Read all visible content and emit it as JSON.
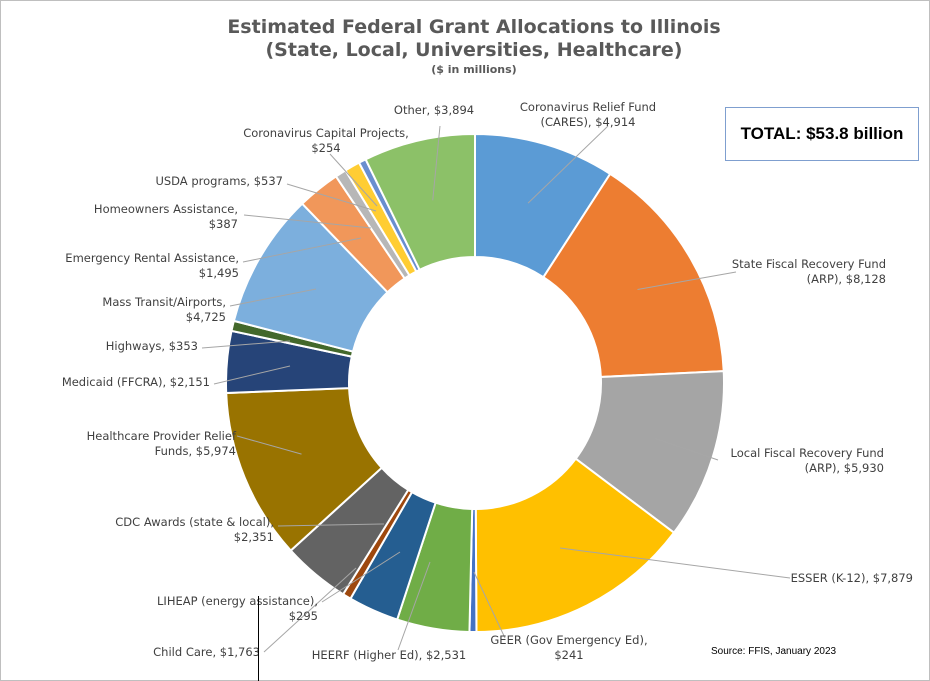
{
  "chart_data": {
    "type": "pie",
    "donut": true,
    "title": "Estimated Federal Grant Allocations to Illinois",
    "subtitle": "(State, Local, Universities, Healthcare)",
    "units_note": "($ in millions)",
    "total_label": "TOTAL: $53.8 billion",
    "source": "Source: FFIS, January 2023",
    "slices": [
      {
        "label_lines": [
          "Coronavirus Relief Fund",
          "(CARES),  $4,914"
        ],
        "value": 4914,
        "color": "#5b9bd5"
      },
      {
        "label_lines": [
          "State Fiscal Recovery Fund",
          "(ARP),  $8,128"
        ],
        "value": 8128,
        "color": "#ed7d31"
      },
      {
        "label_lines": [
          "Local Fiscal Recovery Fund",
          "(ARP),  $5,930"
        ],
        "value": 5930,
        "color": "#a5a5a5"
      },
      {
        "label_lines": [
          "ESSER (K-12),  $7,879"
        ],
        "value": 7879,
        "color": "#ffc000"
      },
      {
        "label_lines": [
          "GEER (Gov Emergency Ed),",
          "$241"
        ],
        "value": 241,
        "color": "#4472c4"
      },
      {
        "label_lines": [
          "HEERF (Higher Ed),  $2,531"
        ],
        "value": 2531,
        "color": "#70ad47"
      },
      {
        "label_lines": [
          "Child Care,  $1,763"
        ],
        "value": 1763,
        "color": "#255e91"
      },
      {
        "label_lines": [
          "LIHEAP (energy assistance),",
          "$295"
        ],
        "value": 295,
        "color": "#9e480e"
      },
      {
        "label_lines": [
          "CDC Awards (state & local),",
          "$2,351"
        ],
        "value": 2351,
        "color": "#636363"
      },
      {
        "label_lines": [
          "Healthcare Provider Relief",
          "Funds,  $5,974"
        ],
        "value": 5974,
        "color": "#997300"
      },
      {
        "label_lines": [
          "Medicaid (FFCRA),  $2,151"
        ],
        "value": 2151,
        "color": "#264478"
      },
      {
        "label_lines": [
          "Highways,  $353"
        ],
        "value": 353,
        "color": "#43682b"
      },
      {
        "label_lines": [
          "Mass Transit/Airports,",
          "$4,725"
        ],
        "value": 4725,
        "color": "#7cafdd"
      },
      {
        "label_lines": [
          "Emergency Rental Assistance,",
          "$1,495"
        ],
        "value": 1495,
        "color": "#f1975a"
      },
      {
        "label_lines": [
          "Homeowners Assistance,",
          "$387"
        ],
        "value": 387,
        "color": "#b7b7b7"
      },
      {
        "label_lines": [
          "USDA programs,  $537"
        ],
        "value": 537,
        "color": "#ffcd33"
      },
      {
        "label_lines": [
          "Coronavirus Capital Projects,",
          "$254"
        ],
        "value": 254,
        "color": "#698ed0"
      },
      {
        "label_lines": [
          "Other,  $3,894"
        ],
        "value": 3894,
        "color": "#8cc168"
      }
    ]
  }
}
